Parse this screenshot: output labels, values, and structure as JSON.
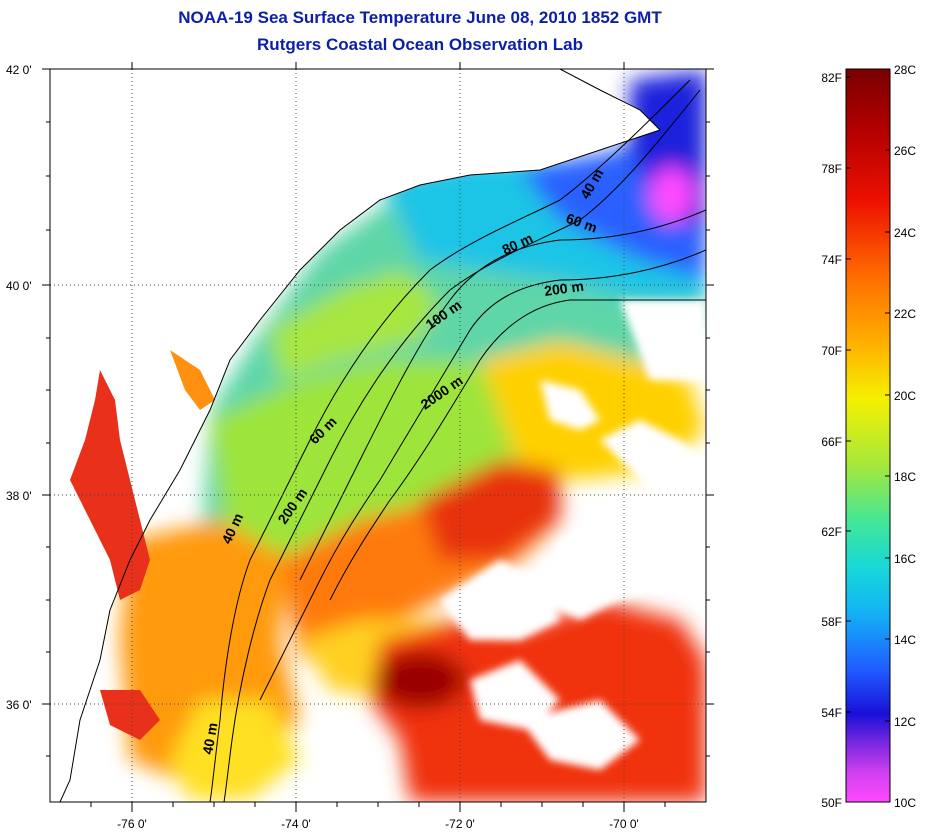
{
  "title_line1": "NOAA-19 Sea Surface Temperature June 08, 2010 1852 GMT",
  "title_line2": "Rutgers Coastal Ocean Observation Lab",
  "map": {
    "lon_range": [
      -77.0,
      -69.0
    ],
    "lat_range": [
      35.0,
      42.0
    ],
    "lon_ticks": [
      "-76 0'",
      "-74 0'",
      "-72 0'",
      "-70 0'"
    ],
    "lat_ticks": [
      "42 0'",
      "40 0'",
      "38 0'",
      "36 0'"
    ],
    "contour_labels": [
      "40 m",
      "60 m",
      "80 m",
      "200 m",
      "100 m",
      "2000 m",
      "60 m",
      "40 m",
      "200 m",
      "40 m"
    ]
  },
  "colorbar": {
    "fahrenheit_labels": [
      "82F",
      "78F",
      "74F",
      "70F",
      "66F",
      "62F",
      "58F",
      "54F",
      "50F"
    ],
    "celsius_labels": [
      "28C",
      "26C",
      "24C",
      "22C",
      "20C",
      "18C",
      "16C",
      "14C",
      "12C",
      "10C"
    ],
    "colors": [
      "#7a0000",
      "#d40000",
      "#ff3a00",
      "#ff8a00",
      "#ffd000",
      "#f5f500",
      "#8ee03a",
      "#22e0b0",
      "#12c8ee",
      "#1f6cff",
      "#1a10d8",
      "#a020e0",
      "#ff40ff"
    ]
  }
}
